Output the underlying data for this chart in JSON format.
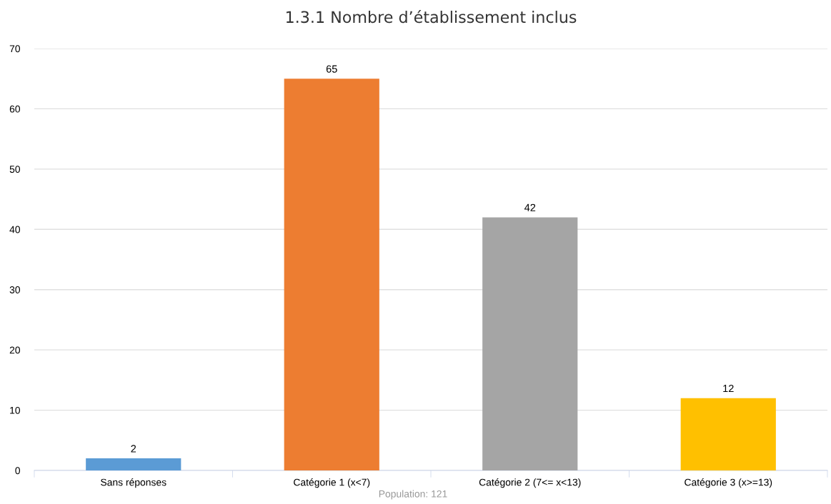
{
  "chart_data": {
    "type": "bar",
    "title": "1.3.1 Nombre d’établissement inclus",
    "categories": [
      "Sans réponses",
      "Catégorie 1 (x<7)",
      "Catégorie 2 (7<= x<13)",
      "Catégorie 3 (x>=13)"
    ],
    "values": [
      2,
      65,
      42,
      12
    ],
    "colors": [
      "#5b9bd5",
      "#ed7d31",
      "#a5a5a5",
      "#ffc000"
    ],
    "ylim": [
      0,
      70
    ],
    "yticks": [
      0,
      10,
      20,
      30,
      40,
      50,
      60,
      70
    ],
    "grid": "y",
    "data_labels": true,
    "annotations": [
      "Population: 121"
    ]
  }
}
